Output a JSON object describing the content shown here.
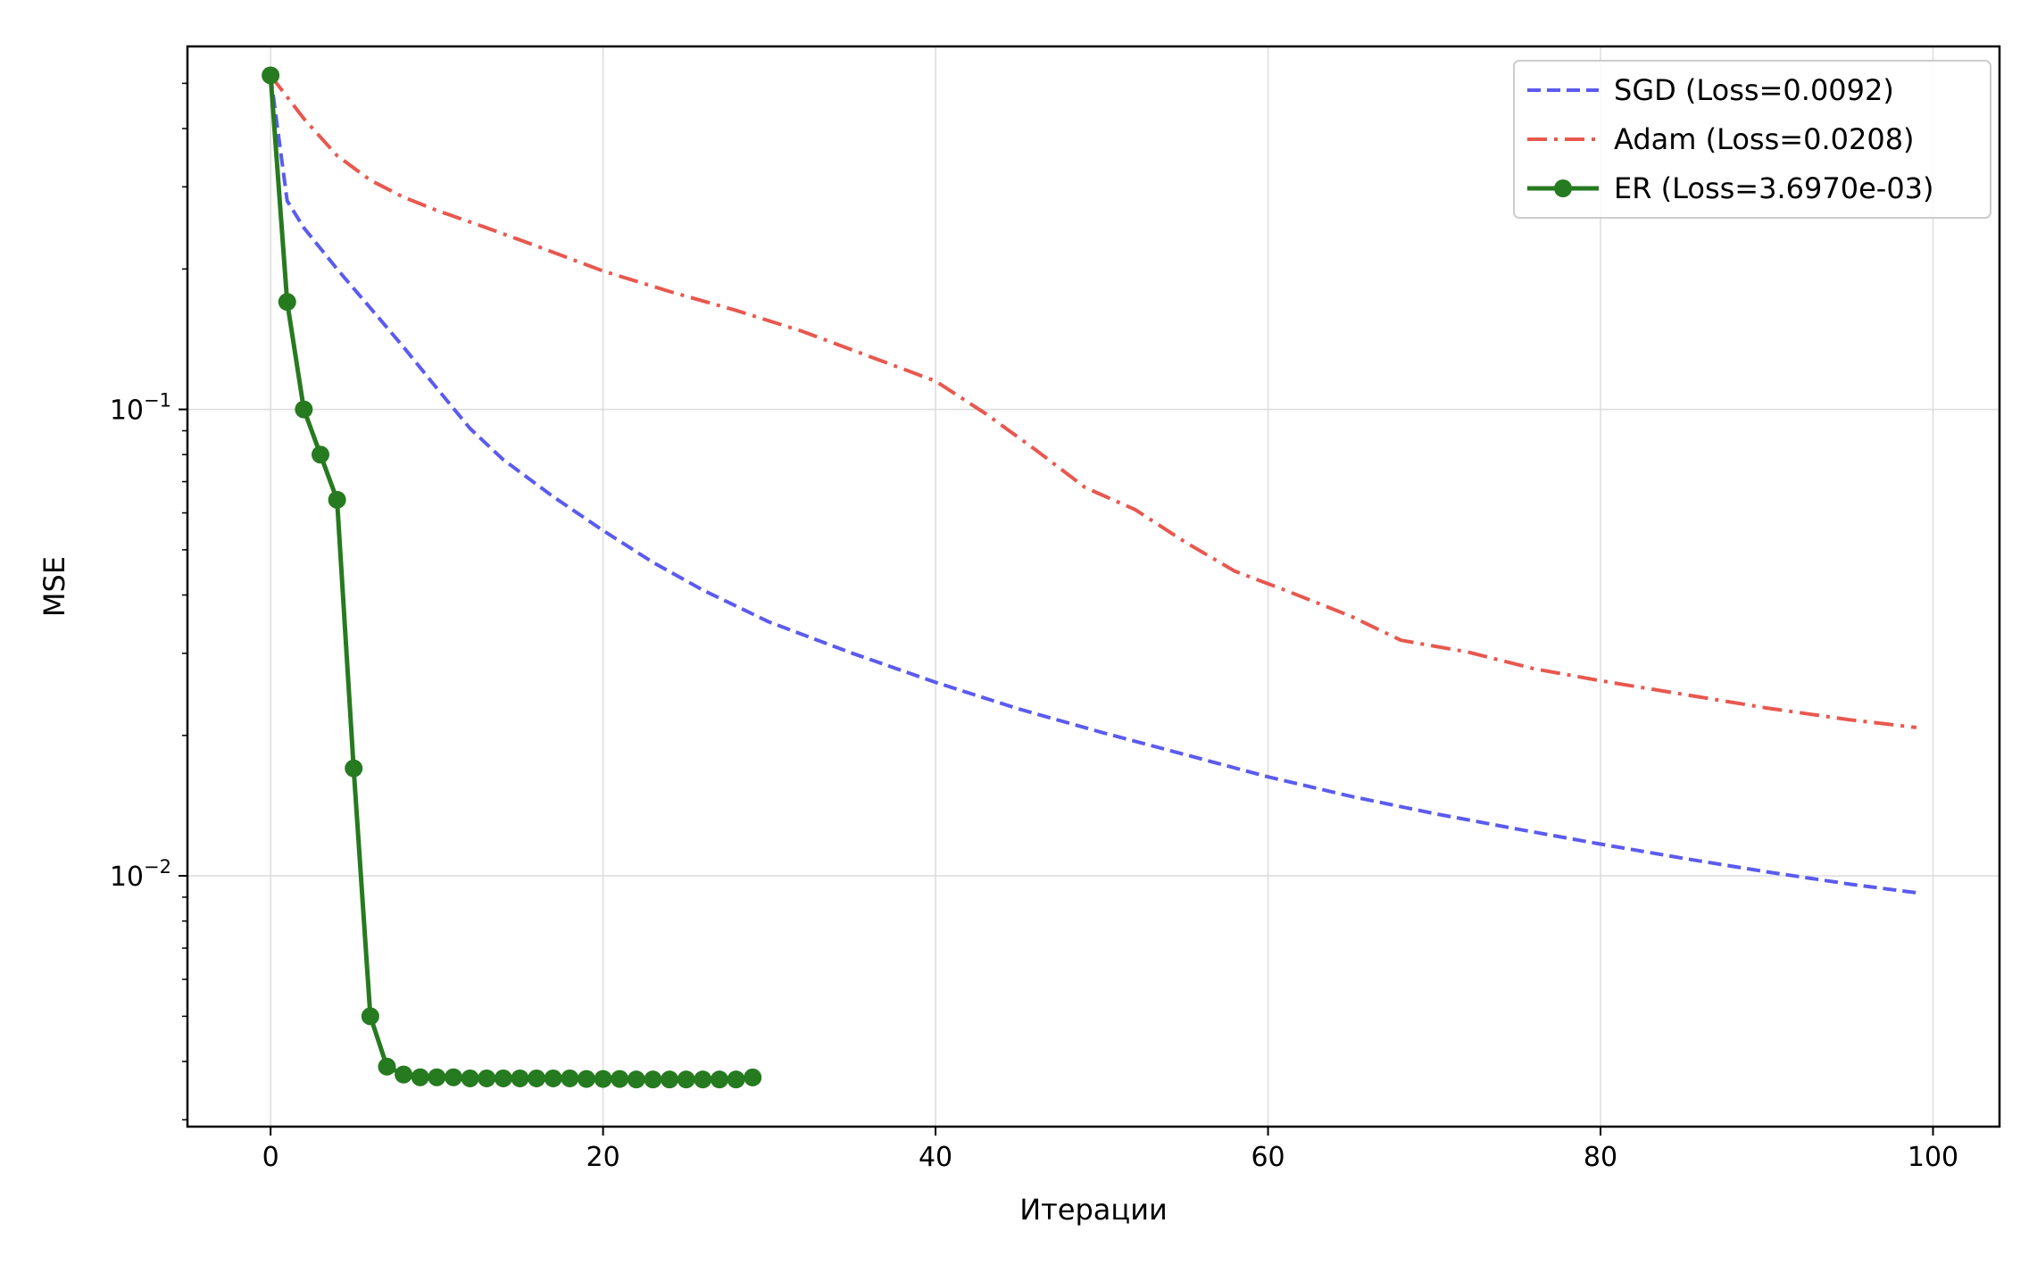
{
  "chart_data": {
    "type": "line",
    "title": "",
    "xlabel": "Итерации",
    "ylabel": "MSE",
    "xlim": [
      -5,
      104
    ],
    "ylim": [
      0.0029,
      0.6
    ],
    "yscale": "log",
    "grid": true,
    "legend_position": "top-right",
    "x_ticks": [
      {
        "value": 0,
        "label": "0"
      },
      {
        "value": 20,
        "label": "20"
      },
      {
        "value": 40,
        "label": "40"
      },
      {
        "value": 60,
        "label": "60"
      },
      {
        "value": 80,
        "label": "80"
      },
      {
        "value": 100,
        "label": "100"
      }
    ],
    "y_ticks": [
      {
        "value": 0.1,
        "base": "10",
        "exp": "−1"
      },
      {
        "value": 0.01,
        "base": "10",
        "exp": "−2"
      }
    ],
    "series": [
      {
        "name": "SGD (Loss=0.0092)",
        "color": "#5b5bf0",
        "style": "dashed",
        "x": [
          0,
          1,
          2,
          4,
          6,
          8,
          10,
          12,
          14,
          17,
          20,
          23,
          26,
          30,
          35,
          40,
          45,
          50,
          55,
          60,
          65,
          70,
          75,
          80,
          85,
          90,
          95,
          99
        ],
        "y": [
          0.52,
          0.28,
          0.245,
          0.2,
          0.165,
          0.136,
          0.111,
          0.091,
          0.078,
          0.065,
          0.055,
          0.047,
          0.041,
          0.035,
          0.03,
          0.026,
          0.0228,
          0.0203,
          0.0182,
          0.0163,
          0.0148,
          0.0136,
          0.0126,
          0.0117,
          0.0109,
          0.0102,
          0.0096,
          0.0092
        ]
      },
      {
        "name": "Adam (Loss=0.0208)",
        "color": "#e8584f",
        "style": "dashdot",
        "x": [
          0,
          2,
          4,
          6,
          8,
          10,
          13,
          16,
          20,
          24,
          28,
          32,
          36,
          40,
          43,
          46,
          49,
          52,
          55,
          58,
          61,
          65,
          68,
          72,
          76,
          80,
          85,
          90,
          95,
          99
        ],
        "y": [
          0.52,
          0.42,
          0.35,
          0.31,
          0.285,
          0.267,
          0.245,
          0.224,
          0.198,
          0.179,
          0.163,
          0.147,
          0.13,
          0.115,
          0.098,
          0.082,
          0.068,
          0.061,
          0.052,
          0.045,
          0.041,
          0.036,
          0.032,
          0.0302,
          0.0278,
          0.0262,
          0.0245,
          0.0229,
          0.0216,
          0.0208
        ]
      },
      {
        "name": "ER (Loss=3.6970e-03)",
        "color": "#267a1f",
        "style": "solid-marker",
        "x": [
          0,
          1,
          2,
          3,
          4,
          5,
          6,
          7,
          8,
          9,
          10,
          11,
          12,
          13,
          14,
          15,
          16,
          17,
          18,
          19,
          20,
          21,
          22,
          23,
          24,
          25,
          26,
          27,
          28,
          29
        ],
        "y": [
          0.52,
          0.17,
          0.1,
          0.08,
          0.064,
          0.017,
          0.005,
          0.0039,
          0.00375,
          0.0037,
          0.0037,
          0.0037,
          0.00368,
          0.00368,
          0.00368,
          0.00368,
          0.00368,
          0.00368,
          0.00368,
          0.00367,
          0.00367,
          0.00367,
          0.00366,
          0.00366,
          0.00366,
          0.00366,
          0.00366,
          0.00366,
          0.00366,
          0.003697
        ]
      }
    ]
  }
}
